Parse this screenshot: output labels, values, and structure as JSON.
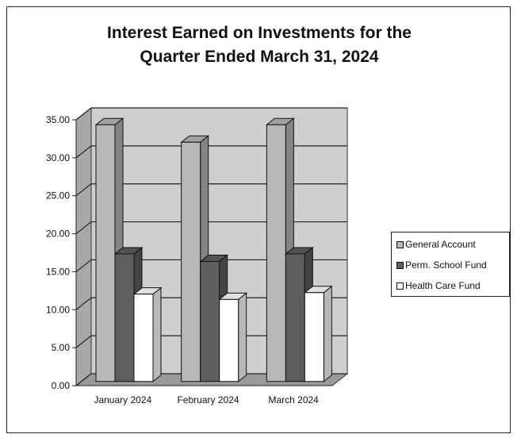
{
  "chart_data": {
    "type": "bar",
    "title_lines": [
      "Interest Earned on Investments for the",
      "Quarter Ended March 31, 2024"
    ],
    "categories": [
      "January 2024",
      "February 2024",
      "March 2024"
    ],
    "series": [
      {
        "name": "General Account",
        "values": [
          33.8,
          31.5,
          33.8
        ],
        "color": "#b8b8b8"
      },
      {
        "name": "Perm. School Fund",
        "values": [
          16.8,
          15.8,
          16.8
        ],
        "color": "#5e5e5e"
      },
      {
        "name": "Health Care Fund",
        "values": [
          11.5,
          10.8,
          11.7
        ],
        "color": "#ffffff"
      }
    ],
    "ylim": [
      0,
      35
    ],
    "yticks": [
      "0.00",
      "5.00",
      "10.00",
      "15.00",
      "20.00",
      "25.00",
      "30.00",
      "35.00"
    ],
    "grid": true,
    "legend_position": "right",
    "xlabel": "",
    "ylabel": ""
  }
}
